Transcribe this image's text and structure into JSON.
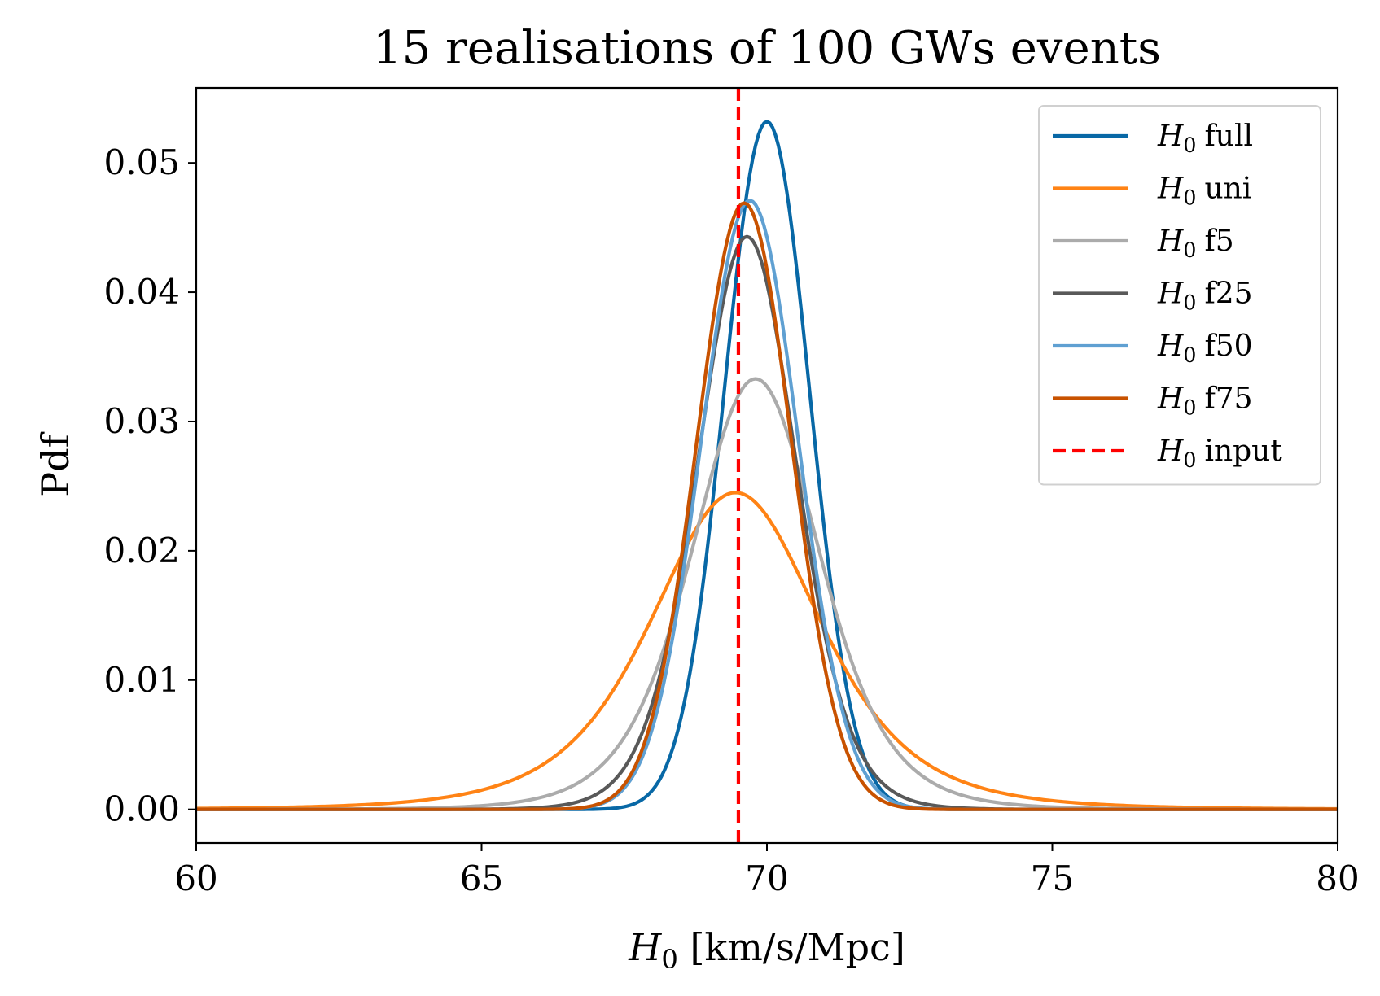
{
  "chart_data": {
    "type": "line",
    "title": "15 realisations of 100 GWs events",
    "xlabel": {
      "symbol": "H",
      "subscript": "0",
      "suffix": " [km/s/Mpc]"
    },
    "ylabel": "Pdf",
    "xlim": [
      60,
      80
    ],
    "ylim": [
      -0.0026,
      0.0558
    ],
    "xticks": [
      60,
      65,
      70,
      75,
      80
    ],
    "xtick_labels": [
      "60",
      "65",
      "70",
      "75",
      "80"
    ],
    "yticks": [
      0.0,
      0.01,
      0.02,
      0.03,
      0.04,
      0.05
    ],
    "ytick_labels": [
      "0.00",
      "0.01",
      "0.02",
      "0.03",
      "0.04",
      "0.05"
    ],
    "grid": false,
    "legend_position": "top-right",
    "series": [
      {
        "name": "full",
        "legend_symbol": "H",
        "legend_subscript": "0",
        "color": "#0868a6",
        "style": "solid",
        "shape": "gaussian",
        "mean": 70.0,
        "sigma": 0.75,
        "peak": 0.0532
      },
      {
        "name": "uni",
        "legend_symbol": "H",
        "legend_subscript": "0",
        "color": "#ff8315",
        "style": "solid",
        "shape": "student-t",
        "mean": 69.45,
        "sigma": 1.55,
        "nu": 4,
        "peak": 0.0245
      },
      {
        "name": "f5",
        "legend_symbol": "H",
        "legend_subscript": "0",
        "color": "#ababab",
        "style": "solid",
        "shape": "student-t",
        "mean": 69.8,
        "sigma": 1.15,
        "nu": 6,
        "peak": 0.0333
      },
      {
        "name": "f25",
        "legend_symbol": "H",
        "legend_subscript": "0",
        "color": "#595959",
        "style": "solid",
        "shape": "student-t",
        "mean": 69.65,
        "sigma": 0.88,
        "nu": 12,
        "peak": 0.0443
      },
      {
        "name": "f50",
        "legend_symbol": "H",
        "legend_subscript": "0",
        "color": "#5fa0d2",
        "style": "solid",
        "shape": "gaussian",
        "mean": 69.7,
        "sigma": 0.85,
        "peak": 0.0471
      },
      {
        "name": "f75",
        "legend_symbol": "H",
        "legend_subscript": "0",
        "color": "#c85200",
        "style": "solid",
        "shape": "gaussian",
        "mean": 69.6,
        "sigma": 0.83,
        "peak": 0.0469
      },
      {
        "name": "input",
        "legend_symbol": "H",
        "legend_subscript": "0",
        "color": "#ff0000",
        "style": "dashed",
        "shape": "vline",
        "x": 69.5
      }
    ]
  }
}
